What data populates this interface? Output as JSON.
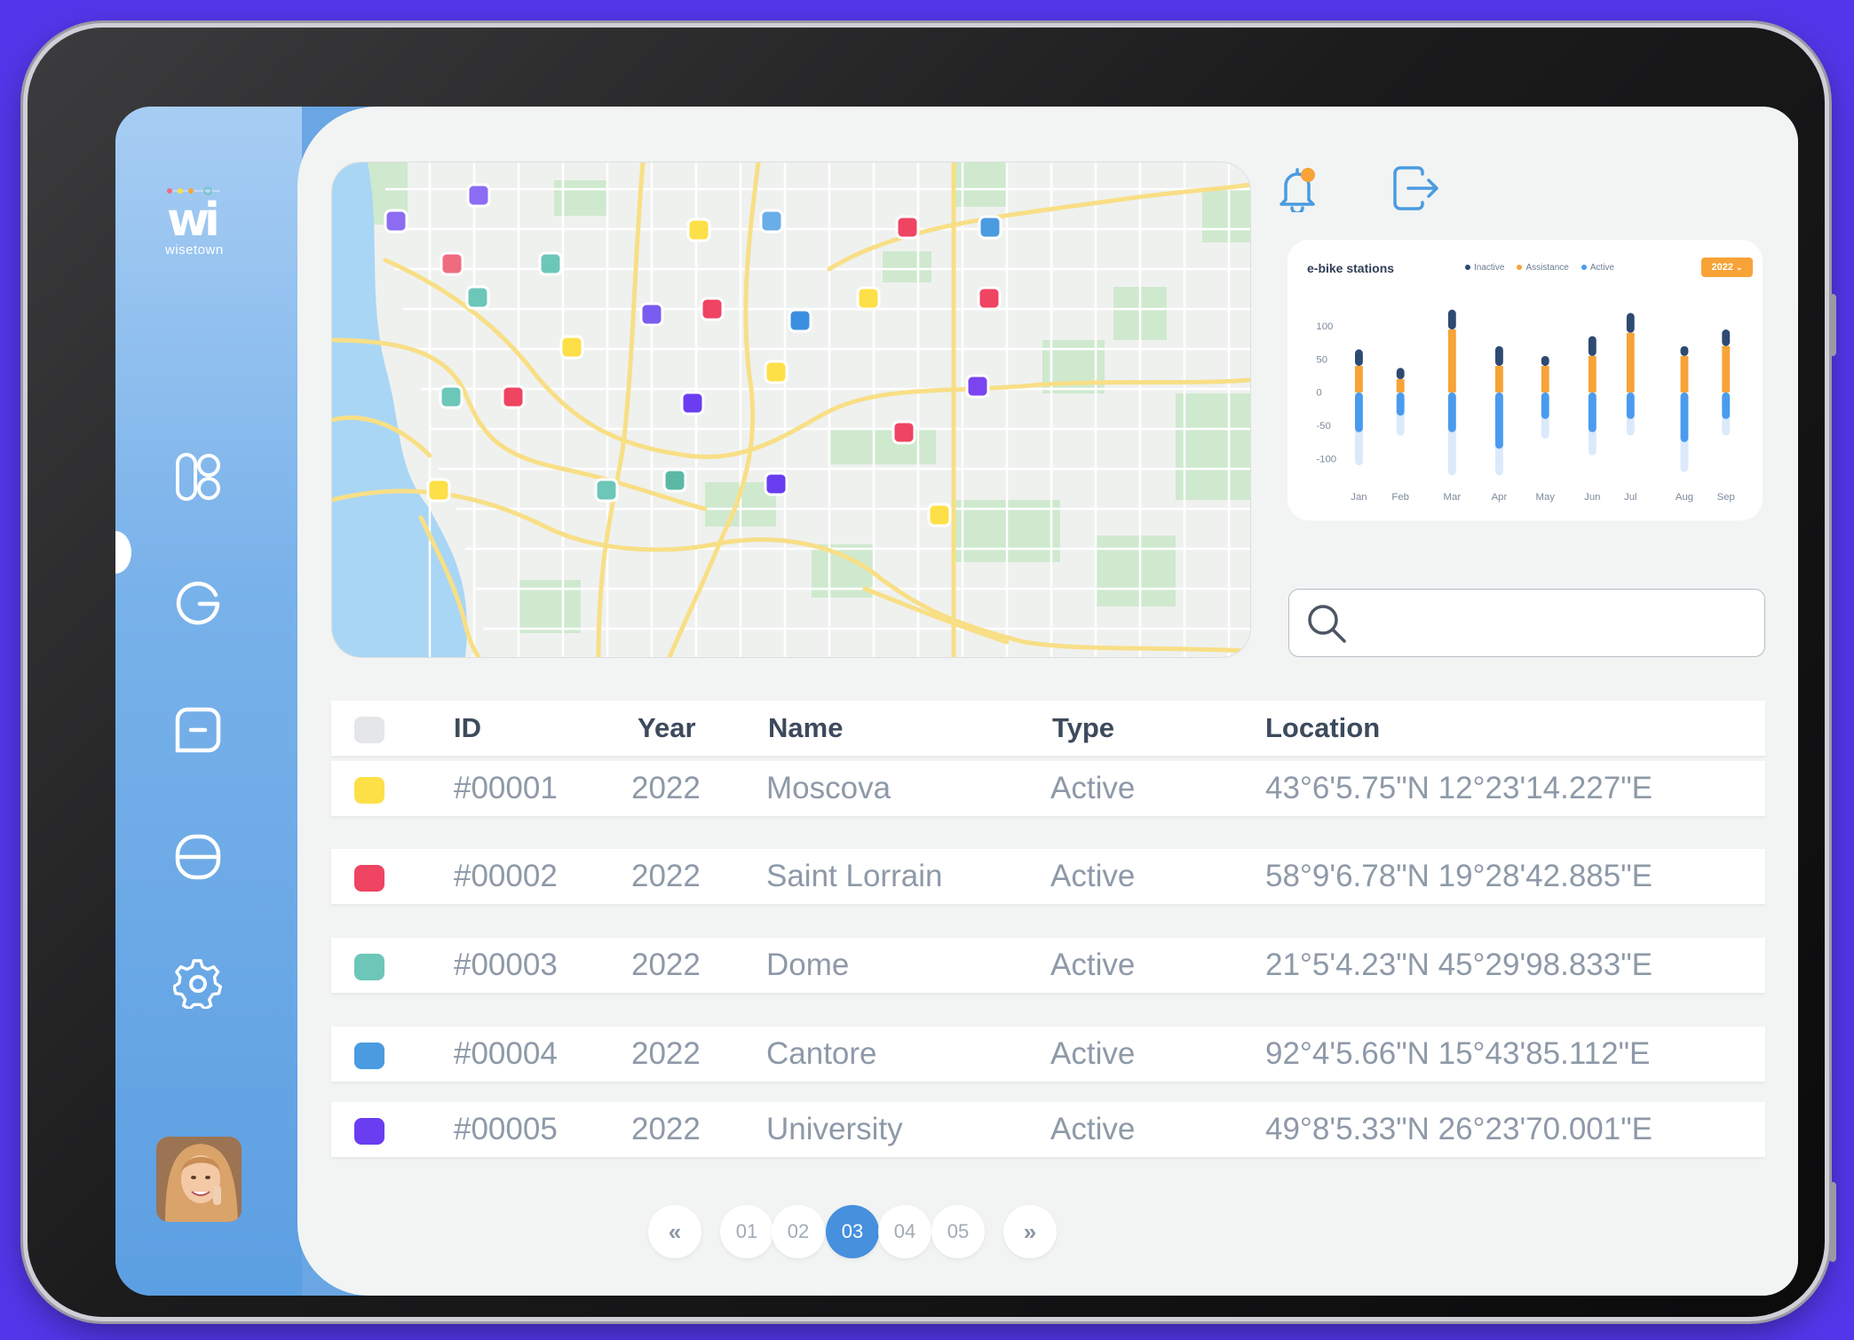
{
  "brand": {
    "logo_mark": "wi",
    "logo_text": "wisetown"
  },
  "sidebar": {
    "items": [
      {
        "icon": "grid-icon"
      },
      {
        "icon": "bike-station-icon"
      },
      {
        "icon": "chat-minus-icon"
      },
      {
        "icon": "database-icon"
      },
      {
        "icon": "gear-icon"
      }
    ],
    "active_index": 1
  },
  "header": {
    "notification_icon": "bell-icon",
    "logout_icon": "logout-icon"
  },
  "map": {
    "markers": [
      {
        "color": "#8b6cf2"
      },
      {
        "color": "#8b6cf2"
      },
      {
        "color": "#fde047"
      },
      {
        "color": "#6aaee8"
      },
      {
        "color": "#ef4462"
      },
      {
        "color": "#4a9be0"
      },
      {
        "color": "#ef6b80"
      },
      {
        "color": "#6cc7b9"
      },
      {
        "color": "#6cc7b9"
      },
      {
        "color": "#7a5cf0"
      },
      {
        "color": "#ef4462"
      },
      {
        "color": "#3c8fe0"
      },
      {
        "color": "#fde047"
      },
      {
        "color": "#ef4462"
      },
      {
        "color": "#fde047"
      },
      {
        "color": "#fde047"
      },
      {
        "color": "#6cc7b9"
      },
      {
        "color": "#ef4462"
      },
      {
        "color": "#6a3df0"
      },
      {
        "color": "#7b44f0"
      },
      {
        "color": "#ef4462"
      },
      {
        "color": "#fde047"
      },
      {
        "color": "#6cc7b9"
      },
      {
        "color": "#5bb8a5"
      },
      {
        "color": "#6a3df0"
      },
      {
        "color": "#fde047"
      }
    ]
  },
  "chart_data": {
    "type": "bar",
    "title": "e-bike stations",
    "year_selector": "2022",
    "categories": [
      "Jan",
      "Feb",
      "Mar",
      "Apr",
      "May",
      "Jun",
      "Jul",
      "Aug",
      "Sep"
    ],
    "y_ticks": [
      "100",
      "50",
      "0",
      "-50",
      "-100"
    ],
    "ylim": [
      -125,
      125
    ],
    "legend": [
      {
        "name": "Inactive",
        "color": "#2e4a72"
      },
      {
        "name": "Assistance",
        "color": "#f7a337"
      },
      {
        "name": "Active",
        "color": "#4a9bef"
      }
    ],
    "series": [
      {
        "name": "Inactive",
        "values": [
          25,
          17,
          30,
          30,
          15,
          30,
          30,
          15,
          25
        ]
      },
      {
        "name": "Assistance",
        "values": [
          40,
          20,
          95,
          40,
          40,
          55,
          90,
          55,
          70
        ]
      },
      {
        "name": "Active",
        "values": [
          -60,
          -35,
          -60,
          -85,
          -40,
          -60,
          -40,
          -75,
          -40
        ]
      }
    ],
    "faint_bar_extent": [
      -110,
      -65,
      -125,
      -125,
      -70,
      -95,
      -65,
      -120,
      -65
    ]
  },
  "search": {
    "placeholder": "",
    "value": "",
    "icon": "search-icon"
  },
  "table": {
    "headers": {
      "id": "ID",
      "year": "Year",
      "name": "Name",
      "type": "Type",
      "location": "Location"
    },
    "header_check_color": "#e4e6e9",
    "rows": [
      {
        "color": "#fde047",
        "id": "#00001",
        "year": "2022",
        "name": "Moscova",
        "type": "Active",
        "location": "43°6'5.75\"N 12°23'14.227\"E"
      },
      {
        "color": "#ef4462",
        "id": "#00002",
        "year": "2022",
        "name": "Saint Lorrain",
        "type": "Active",
        "location": "58°9'6.78\"N 19°28'42.885\"E"
      },
      {
        "color": "#6cc7b9",
        "id": "#00003",
        "year": "2022",
        "name": "Dome",
        "type": "Active",
        "location": "21°5'4.23\"N 45°29'98.833\"E"
      },
      {
        "color": "#4a9be0",
        "id": "#00004",
        "year": "2022",
        "name": "Cantore",
        "type": "Active",
        "location": "92°4'5.66\"N 15°43'85.112\"E"
      },
      {
        "color": "#6a3df0",
        "id": "#00005",
        "year": "2022",
        "name": "University",
        "type": "Active",
        "location": "49°8'5.33\"N 26°23'70.001\"E"
      }
    ]
  },
  "pagination": {
    "prev": "«",
    "next": "»",
    "pages": [
      "01",
      "02",
      "03",
      "04",
      "05"
    ],
    "current": "03"
  }
}
